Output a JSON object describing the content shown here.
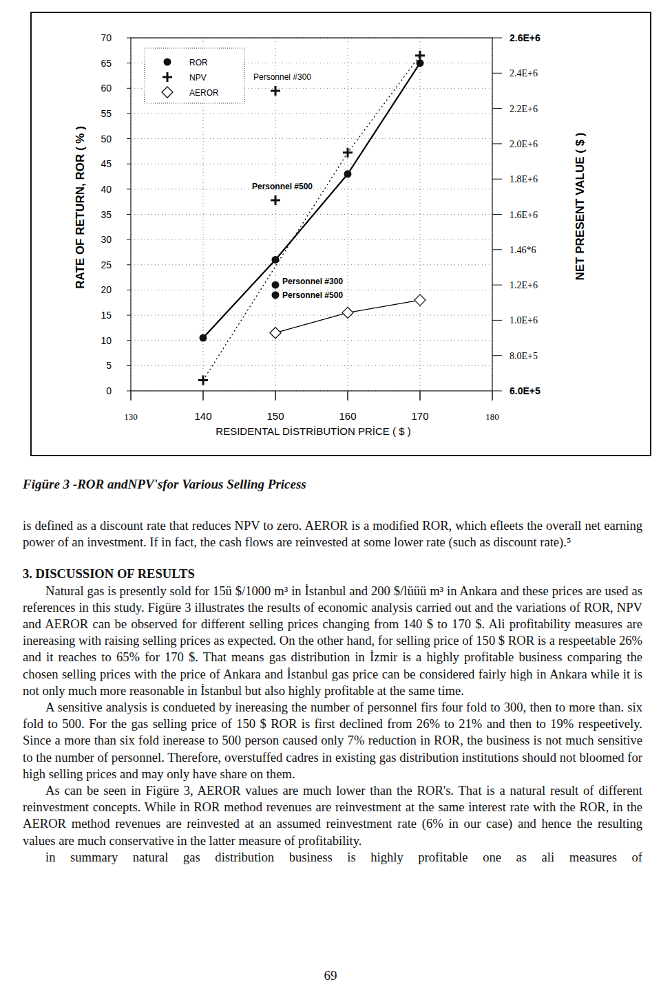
{
  "chart_data": {
    "type": "line",
    "x_label": "RESIDENTAL DİSTRİBUTİON PRİCE ( $ )",
    "y_label": "RATE OF RETURN, ROR ( % )",
    "y2_label": "NET PRESENT VALUE ( $ )",
    "xlim": [
      130,
      180
    ],
    "xticks": [
      130,
      140,
      150,
      160,
      170,
      180
    ],
    "ylim": [
      0,
      70
    ],
    "yticks": [
      0,
      5,
      10,
      15,
      20,
      25,
      30,
      35,
      40,
      45,
      50,
      55,
      60,
      65,
      70
    ],
    "y2lim": [
      600000,
      2600000
    ],
    "y2ticks": [
      {
        "value": 600000,
        "label": "6.0E+5"
      },
      {
        "value": 800000,
        "label": "8.0E+5"
      },
      {
        "value": 1000000,
        "label": "1.0E+6"
      },
      {
        "value": 1200000,
        "label": "1.2E+6"
      },
      {
        "value": 1400000,
        "label": "1.46*6"
      },
      {
        "value": 1600000,
        "label": "1.6E+6"
      },
      {
        "value": 1800000,
        "label": "1.8E+6"
      },
      {
        "value": 2000000,
        "label": "2.0E+6"
      },
      {
        "value": 2200000,
        "label": "2.2E+6"
      },
      {
        "value": 2400000,
        "label": "2.4E+6"
      },
      {
        "value": 2600000,
        "label": "2.6E+6"
      }
    ],
    "grid": true,
    "legend": "upper left",
    "series": [
      {
        "name": "ROR",
        "x": [
          140,
          150,
          160,
          170
        ],
        "values": [
          10.5,
          26,
          43,
          65
        ],
        "marker": "circle",
        "line_style": "solid",
        "color": "#000000"
      },
      {
        "name": "NPV",
        "axis": "y2",
        "x": [
          140,
          160,
          170
        ],
        "values": [
          660000,
          1950000,
          2500000
        ],
        "marker": "plus",
        "line_style": "dotted",
        "color": "#000000"
      },
      {
        "name": "AEROR",
        "x": [
          150,
          160,
          170
        ],
        "values": [
          11.5,
          15.5,
          18
        ],
        "marker": "diamond",
        "line_style": "solid",
        "color": "#000000"
      }
    ],
    "sensitivity_points": [
      {
        "label": "Personnel #300",
        "x": 150,
        "ror": 21,
        "npv": 2300000
      },
      {
        "label": "Personnel #500",
        "x": 150,
        "ror": 19,
        "npv": 1680000
      }
    ]
  },
  "caption": "Figüre 3 -ROR andNPV'sfor Various Selling Pricess",
  "intro_paragraph": "is defined as a discount rate that reduces NPV to zero. AEROR is a modified ROR, which efleets the overall net earning power of an investment. If in fact, the cash flows are reinvested at some lower rate (such as discount rate).⁵",
  "heading": "3. DISCUSSION OF RESULTS",
  "paragraphs": [
    "Natural gas is presently sold for 15ü $/1000 m³ in İstanbul and 200 $/lüüü m³ in Ankara and these prices are used as references in this study. Figüre 3 illustrates the results of economic analysis carried out and the variations of ROR, NPV and AEROR can be observed for different selling prices changing from 140 $ to 170 $. Ali profitability measures are inereasing with raising selling prices as expected. On the other hand, for selling price of 150 $ ROR is a respeetable 26% and it reaches to 65% for 170 $. That means gas distribution in İzmir is a highly profitable business comparing the chosen selling prices with the price of Ankara and İstanbul gas price can be considered fairly high in Ankara while it is not only much more reasonable in İstanbul but also highly profitable at the same time.",
    "A sensitive analysis is condueted by inereasing the number of personnel firs four fold to 300, then to more than. six fold to 500. For the gas selling price of 150 $ ROR is first declined from 26% to 21% and then to 19% respeetively. Since a more than six fold inerease to 500 person caused only 7% reduction in ROR, the business is not much sensitive to the number of personnel. Therefore, overstuffed cadres in existing gas distribution institutions should not bloomed for high selling prices and may only have share on them.",
    "As can be seen in Figüre 3, AEROR values are much lower than the ROR's. That is a natural result of different reinvestment concepts. While in ROR method revenues are reinvestment at the same interest rate with the ROR, in the AEROR method revenues are reinvested at an assumed reinvestment rate (6% in our case) and hence the resulting values are much conservative in the latter measure of profitability.",
    "in summary natural gas distribution business is highly profitable one as ali measures of"
  ],
  "page_number": "69"
}
